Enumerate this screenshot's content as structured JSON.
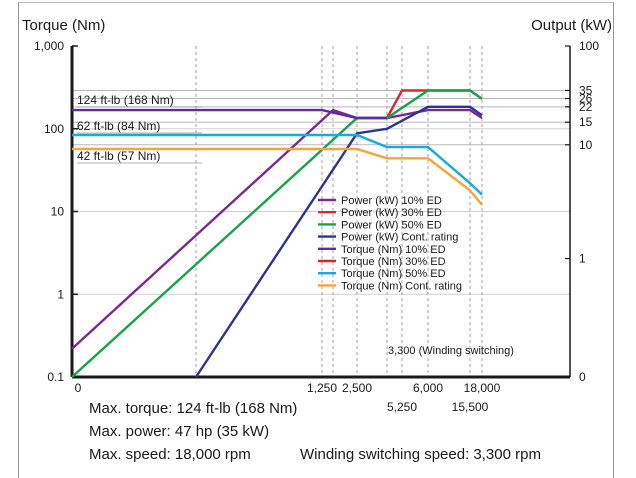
{
  "chart_data": {
    "type": "line",
    "left_axis_title": "Torque (Nm)",
    "right_axis_title": "Output (kW)",
    "y_left_scale": "log",
    "y_left_range": [
      0.1,
      1000
    ],
    "y_left_ticks": [
      {
        "value": 1000,
        "label": "1,000"
      },
      {
        "value": 100,
        "label": "100"
      },
      {
        "value": 10,
        "label": "10"
      },
      {
        "value": 1,
        "label": "1"
      },
      {
        "value": 0.1,
        "label": "0.1"
      }
    ],
    "y_right_ticks": [
      {
        "value": 100,
        "label": "100",
        "pos": 1000
      },
      {
        "value": 35,
        "label": "35",
        "pos": 290
      },
      {
        "value": 26,
        "label": "26",
        "pos": 232
      },
      {
        "value": 22,
        "label": "22",
        "pos": 184
      },
      {
        "value": 15,
        "label": "15",
        "pos": 120
      },
      {
        "value": 10,
        "label": "10",
        "pos": 64
      },
      {
        "value": 1,
        "label": "1",
        "pos": 2.7
      },
      {
        "value": 0,
        "label": "0",
        "pos": 0.1
      }
    ],
    "x_unit": "rpm",
    "x_ticks_row1": [
      {
        "value": 0,
        "label": "0"
      },
      {
        "value": 1250,
        "label": "1,250"
      },
      {
        "value": 2500,
        "label": "2,500"
      },
      {
        "value": 6000,
        "label": "6,000"
      },
      {
        "value": 18000,
        "label": "18,000"
      }
    ],
    "x_ticks_row2": [
      {
        "value": 5250,
        "label": "5,250"
      },
      {
        "value": 15500,
        "label": "15,500"
      }
    ],
    "x_gridlines": [
      0,
      700,
      1250,
      1400,
      2500,
      3300,
      5250,
      6000,
      15500,
      18000
    ],
    "torque_labels": [
      {
        "text": "124 ft-lb (168 Nm)",
        "value": 168
      },
      {
        "text": "62 ft-lb (84 Nm)",
        "value": 84
      },
      {
        "text": "42 ft-lb (57 Nm)",
        "value": 57
      }
    ],
    "annotation": "3,300 (Winding switching)",
    "annotation_x": 3300,
    "series": [
      {
        "name": "Power (kW) 10% ED",
        "color": "#7a2a8f",
        "points": [
          [
            0,
            0.22
          ],
          [
            1400,
            168
          ],
          [
            2500,
            135
          ],
          [
            3300,
            135
          ],
          [
            6000,
            168
          ],
          [
            15500,
            168
          ],
          [
            18000,
            135
          ]
        ]
      },
      {
        "name": "Power (kW) 30% ED",
        "color": "#d42a37",
        "points": [
          [
            3300,
            135
          ],
          [
            5250,
            290
          ],
          [
            15500,
            290
          ],
          [
            18000,
            230
          ]
        ]
      },
      {
        "name": "Power (kW) 50% ED",
        "color": "#1aa14b",
        "points": [
          [
            0,
            0.1
          ],
          [
            2500,
            135
          ],
          [
            3300,
            135
          ],
          [
            6000,
            290
          ],
          [
            15500,
            290
          ],
          [
            18000,
            230
          ]
        ]
      },
      {
        "name": "Power (kW) Cont. rating",
        "color": "#2b3490",
        "points": [
          [
            700,
            0.1
          ],
          [
            2500,
            88
          ],
          [
            3300,
            100
          ],
          [
            6000,
            184
          ],
          [
            15500,
            184
          ],
          [
            18000,
            145
          ]
        ]
      },
      {
        "name": "Torque (Nm) 10% ED",
        "color": "#5e2aa0",
        "points": [
          [
            0,
            168
          ],
          [
            1250,
            168
          ],
          [
            2500,
            135
          ],
          [
            3300,
            135
          ]
        ]
      },
      {
        "name": "Torque (Nm) 30% ED",
        "color": "#cc2b2b",
        "points": []
      },
      {
        "name": "Torque (Nm) 50% ED",
        "color": "#19a8e0",
        "points": [
          [
            0,
            84
          ],
          [
            2500,
            84
          ],
          [
            3300,
            60
          ],
          [
            6000,
            60
          ],
          [
            15500,
            22
          ],
          [
            18000,
            16
          ]
        ]
      },
      {
        "name": "Torque (Nm) Cont. rating",
        "color": "#f5a43a",
        "points": [
          [
            0,
            57
          ],
          [
            2500,
            57
          ],
          [
            3300,
            44
          ],
          [
            6000,
            44
          ],
          [
            15500,
            18
          ],
          [
            18000,
            12
          ]
        ]
      }
    ],
    "grid": "vertical dashed",
    "legend_position": "center-right"
  },
  "specs": {
    "max_torque": "Max. torque: 124 ft-lb (168 Nm)",
    "max_power": "Max. power: 47 hp (35 kW)",
    "max_speed": "Max. speed: 18,000 rpm",
    "winding_switching_speed": "Winding switching speed: 3,300 rpm"
  }
}
